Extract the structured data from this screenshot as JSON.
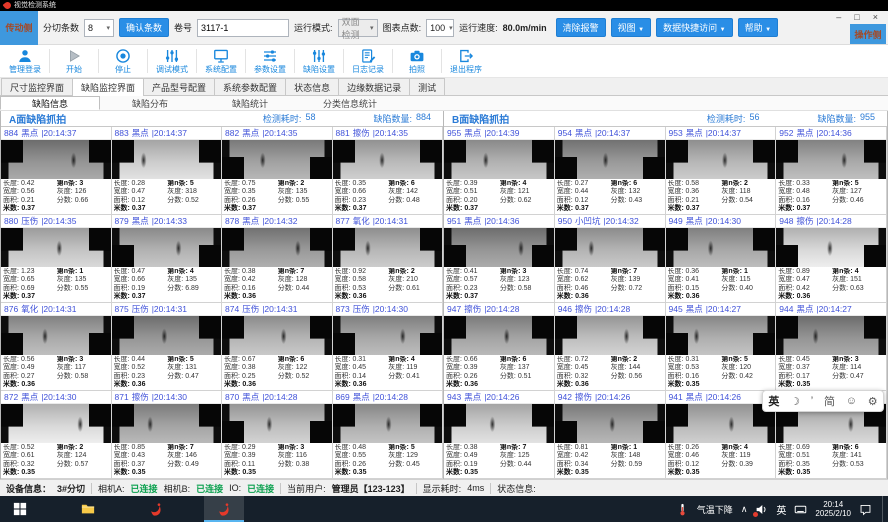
{
  "window": {
    "title": "视觉检测系统",
    "minimize": "–",
    "maximize": "□",
    "close": "×"
  },
  "toolbar": {
    "drive_side": "传动侧",
    "operator_side": "操作侧",
    "slit_count_label": "分切条数",
    "slit_count_value": "8",
    "select_arrow": "▾",
    "confirm_button": "确认条数",
    "roll_label": "卷号",
    "roll_value": "3117-1",
    "run_mode_label": "运行模式:",
    "run_mode_value": "双面检测",
    "chart_points_label": "图表点数:",
    "chart_points_value": "100",
    "speed_label": "运行速度:",
    "speed_value": "80.0m/min",
    "clear_alarm_button": "清除报警",
    "view_menu": "视图",
    "data_menu": "数据快捷访问",
    "help_menu": "帮助",
    "menu_arrow": "▼"
  },
  "actions": [
    {
      "label": "管理登录",
      "icon": "user-icon"
    },
    {
      "label": "开始",
      "icon": "play-icon",
      "disabled": true
    },
    {
      "label": "停止",
      "icon": "stop-icon"
    },
    {
      "label": "调试模式",
      "icon": "debug-icon"
    },
    {
      "label": "系统配置",
      "icon": "monitor-icon"
    },
    {
      "label": "参数设置",
      "icon": "params-icon"
    },
    {
      "label": "缺陷设置",
      "icon": "defect-settings-icon"
    },
    {
      "label": "日志记录",
      "icon": "log-icon"
    },
    {
      "label": "拍照",
      "icon": "camera-icon"
    },
    {
      "label": "退出程序",
      "icon": "exit-icon"
    }
  ],
  "tabs": {
    "items": [
      "尺寸监控界面",
      "缺陷监控界面",
      "产品型号配置",
      "系统参数配置",
      "状态信息",
      "边缘数据记录",
      "测试"
    ],
    "active_index": 1
  },
  "subtabs": {
    "items": [
      "缺陷信息",
      "缺陷分布",
      "缺陷统计",
      "分类信息统计"
    ],
    "active_index": 0
  },
  "meta_labels": {
    "length": "长度:",
    "width": "宽度:",
    "area": "面积:",
    "meter": "米数:",
    "strip": "第n条:",
    "gray": "灰度:",
    "score": "分数:"
  },
  "panels": [
    {
      "title": "A面缺陷抓拍",
      "elapsed_label": "检测耗时:",
      "elapsed_value": "58",
      "count_label": "缺陷数量:",
      "count_value": "884",
      "cells": [
        {
          "id": "884",
          "type": "黑点",
          "time": "20:14:37",
          "len": "0.42",
          "wid": "0.56",
          "area": "0.21",
          "meter": "0.37",
          "strip": "3",
          "gray": "126",
          "score": "0.66"
        },
        {
          "id": "883",
          "type": "黑点",
          "time": "20:14:37",
          "len": "0.28",
          "wid": "0.47",
          "area": "0.12",
          "meter": "0.37",
          "strip": "5",
          "gray": "318",
          "score": "0.52"
        },
        {
          "id": "882",
          "type": "黑点",
          "time": "20:14:35",
          "len": "0.75",
          "wid": "0.35",
          "area": "0.26",
          "meter": "0.37",
          "strip": "2",
          "gray": "135",
          "score": "0.55"
        },
        {
          "id": "881",
          "type": "擦伤",
          "time": "20:14:35",
          "len": "0.35",
          "wid": "0.66",
          "area": "0.23",
          "meter": "0.37",
          "strip": "6",
          "gray": "142",
          "score": "0.48"
        },
        {
          "id": "880",
          "type": "压伤",
          "time": "20:14:35",
          "len": "1.23",
          "wid": "0.65",
          "area": "0.69",
          "meter": "0.37",
          "strip": "1",
          "gray": "135",
          "score": "0.55"
        },
        {
          "id": "879",
          "type": "黑点",
          "time": "20:14:33",
          "len": "0.47",
          "wid": "0.66",
          "area": "0.19",
          "meter": "0.37",
          "strip": "4",
          "gray": "135",
          "score": "6.89"
        },
        {
          "id": "878",
          "type": "黑点",
          "time": "20:14:32",
          "len": "0.38",
          "wid": "0.42",
          "area": "0.16",
          "meter": "0.36",
          "strip": "7",
          "gray": "128",
          "score": "0.44"
        },
        {
          "id": "877",
          "type": "氧化",
          "time": "20:14:31",
          "len": "0.92",
          "wid": "0.58",
          "area": "0.53",
          "meter": "0.36",
          "strip": "2",
          "gray": "210",
          "score": "0.61"
        },
        {
          "id": "876",
          "type": "氧化",
          "time": "20:14:31",
          "len": "0.56",
          "wid": "0.49",
          "area": "0.27",
          "meter": "0.36",
          "strip": "3",
          "gray": "117",
          "score": "0.58"
        },
        {
          "id": "875",
          "type": "压伤",
          "time": "20:14:31",
          "len": "0.44",
          "wid": "0.52",
          "area": "0.23",
          "meter": "0.36",
          "strip": "5",
          "gray": "131",
          "score": "0.47"
        },
        {
          "id": "874",
          "type": "压伤",
          "time": "20:14:31",
          "len": "0.67",
          "wid": "0.38",
          "area": "0.25",
          "meter": "0.36",
          "strip": "6",
          "gray": "122",
          "score": "0.52"
        },
        {
          "id": "873",
          "type": "压伤",
          "time": "20:14:30",
          "len": "0.31",
          "wid": "0.45",
          "area": "0.14",
          "meter": "0.36",
          "strip": "4",
          "gray": "119",
          "score": "0.41"
        },
        {
          "id": "872",
          "type": "黑点",
          "time": "20:14:30",
          "len": "0.52",
          "wid": "0.61",
          "area": "0.32",
          "meter": "0.35",
          "strip": "2",
          "gray": "124",
          "score": "0.57"
        },
        {
          "id": "871",
          "type": "擦伤",
          "time": "20:14:30",
          "len": "0.85",
          "wid": "0.43",
          "area": "0.37",
          "meter": "0.35",
          "strip": "7",
          "gray": "146",
          "score": "0.49"
        },
        {
          "id": "870",
          "type": "黑点",
          "time": "20:14:28",
          "len": "0.29",
          "wid": "0.39",
          "area": "0.11",
          "meter": "0.35",
          "strip": "3",
          "gray": "116",
          "score": "0.38"
        },
        {
          "id": "869",
          "type": "黑点",
          "time": "20:14:28",
          "len": "0.48",
          "wid": "0.55",
          "area": "0.26",
          "meter": "0.35",
          "strip": "5",
          "gray": "129",
          "score": "0.45"
        }
      ]
    },
    {
      "title": "B面缺陷抓拍",
      "elapsed_label": "检测耗时:",
      "elapsed_value": "56",
      "count_label": "缺陷数量:",
      "count_value": "955",
      "cells": [
        {
          "id": "955",
          "type": "黑点",
          "time": "20:14:39",
          "len": "0.39",
          "wid": "0.51",
          "area": "0.20",
          "meter": "0.37",
          "strip": "4",
          "gray": "121",
          "score": "0.62"
        },
        {
          "id": "954",
          "type": "黑点",
          "time": "20:14:37",
          "len": "0.27",
          "wid": "0.44",
          "area": "0.12",
          "meter": "0.37",
          "strip": "6",
          "gray": "132",
          "score": "0.43"
        },
        {
          "id": "953",
          "type": "黑点",
          "time": "20:14:37",
          "len": "0.58",
          "wid": "0.36",
          "area": "0.21",
          "meter": "0.37",
          "strip": "2",
          "gray": "118",
          "score": "0.54"
        },
        {
          "id": "952",
          "type": "黑点",
          "time": "20:14:36",
          "len": "0.33",
          "wid": "0.48",
          "area": "0.16",
          "meter": "0.37",
          "strip": "5",
          "gray": "127",
          "score": "0.46"
        },
        {
          "id": "951",
          "type": "黑点",
          "time": "20:14:36",
          "len": "0.41",
          "wid": "0.57",
          "area": "0.23",
          "meter": "0.37",
          "strip": "3",
          "gray": "123",
          "score": "0.58"
        },
        {
          "id": "950",
          "type": "小凹坑",
          "time": "20:14:32",
          "len": "0.74",
          "wid": "0.62",
          "area": "0.46",
          "meter": "0.36",
          "strip": "7",
          "gray": "139",
          "score": "0.72"
        },
        {
          "id": "949",
          "type": "黑点",
          "time": "20:14:30",
          "len": "0.36",
          "wid": "0.41",
          "area": "0.15",
          "meter": "0.36",
          "strip": "1",
          "gray": "115",
          "score": "0.40"
        },
        {
          "id": "948",
          "type": "擦伤",
          "time": "20:14:28",
          "len": "0.89",
          "wid": "0.47",
          "area": "0.42",
          "meter": "0.36",
          "strip": "4",
          "gray": "151",
          "score": "0.63"
        },
        {
          "id": "947",
          "type": "擦伤",
          "time": "20:14:28",
          "len": "0.66",
          "wid": "0.39",
          "area": "0.26",
          "meter": "0.36",
          "strip": "6",
          "gray": "137",
          "score": "0.51"
        },
        {
          "id": "946",
          "type": "擦伤",
          "time": "20:14:28",
          "len": "0.72",
          "wid": "0.45",
          "area": "0.32",
          "meter": "0.36",
          "strip": "2",
          "gray": "144",
          "score": "0.56"
        },
        {
          "id": "945",
          "type": "黑点",
          "time": "20:14:27",
          "len": "0.31",
          "wid": "0.53",
          "area": "0.16",
          "meter": "0.35",
          "strip": "5",
          "gray": "120",
          "score": "0.42"
        },
        {
          "id": "944",
          "type": "黑点",
          "time": "20:14:27",
          "len": "0.45",
          "wid": "0.37",
          "area": "0.17",
          "meter": "0.35",
          "strip": "3",
          "gray": "114",
          "score": "0.47"
        },
        {
          "id": "943",
          "type": "黑点",
          "time": "20:14:26",
          "len": "0.38",
          "wid": "0.49",
          "area": "0.19",
          "meter": "0.35",
          "strip": "7",
          "gray": "125",
          "score": "0.44"
        },
        {
          "id": "942",
          "type": "擦伤",
          "time": "20:14:26",
          "len": "0.81",
          "wid": "0.42",
          "area": "0.34",
          "meter": "0.35",
          "strip": "1",
          "gray": "148",
          "score": "0.59"
        },
        {
          "id": "941",
          "type": "黑点",
          "time": "20:14:26",
          "len": "0.26",
          "wid": "0.46",
          "area": "0.12",
          "meter": "0.35",
          "strip": "4",
          "gray": "119",
          "score": "0.39"
        },
        {
          "id": "940",
          "type": "擦伤",
          "time": "20:14:26",
          "len": "0.69",
          "wid": "0.51",
          "area": "0.35",
          "meter": "0.35",
          "strip": "6",
          "gray": "141",
          "score": "0.53"
        }
      ]
    }
  ],
  "statusbar": {
    "device_label": "设备信息：",
    "device_value": "3#分切",
    "cam_a_label": "相机A:",
    "cam_a_value": "已连接",
    "cam_b_label": "相机B:",
    "cam_b_value": "已连接",
    "io_label": "IO:",
    "io_value": "已连接",
    "user_label": "当前用户:",
    "user_value": "管理员【123-123】",
    "display_label": "显示耗时:",
    "display_value": "4ms",
    "status_label": "状态信息:",
    "status_value": ""
  },
  "taskbar": {
    "weather_text": "气温下降",
    "tray_expand": "∧",
    "ime_badge": "英",
    "time": "20:14",
    "date": "2025/2/10"
  },
  "ime": {
    "lang": "英",
    "moon": "☽",
    "punct": "’",
    "simp": "简",
    "emoji": "☺",
    "gear": "⚙"
  },
  "colors": {
    "accent_blue": "#1887dd",
    "button_blue": "#2a8ee6",
    "side_button_blue": "#3e98de",
    "link_blue": "#3f51d9",
    "panel_blue": "#2b7bd6",
    "connected_green": "#0aa04e",
    "taskbar_dark": "#16202b",
    "logo_red": "#e5392a"
  }
}
